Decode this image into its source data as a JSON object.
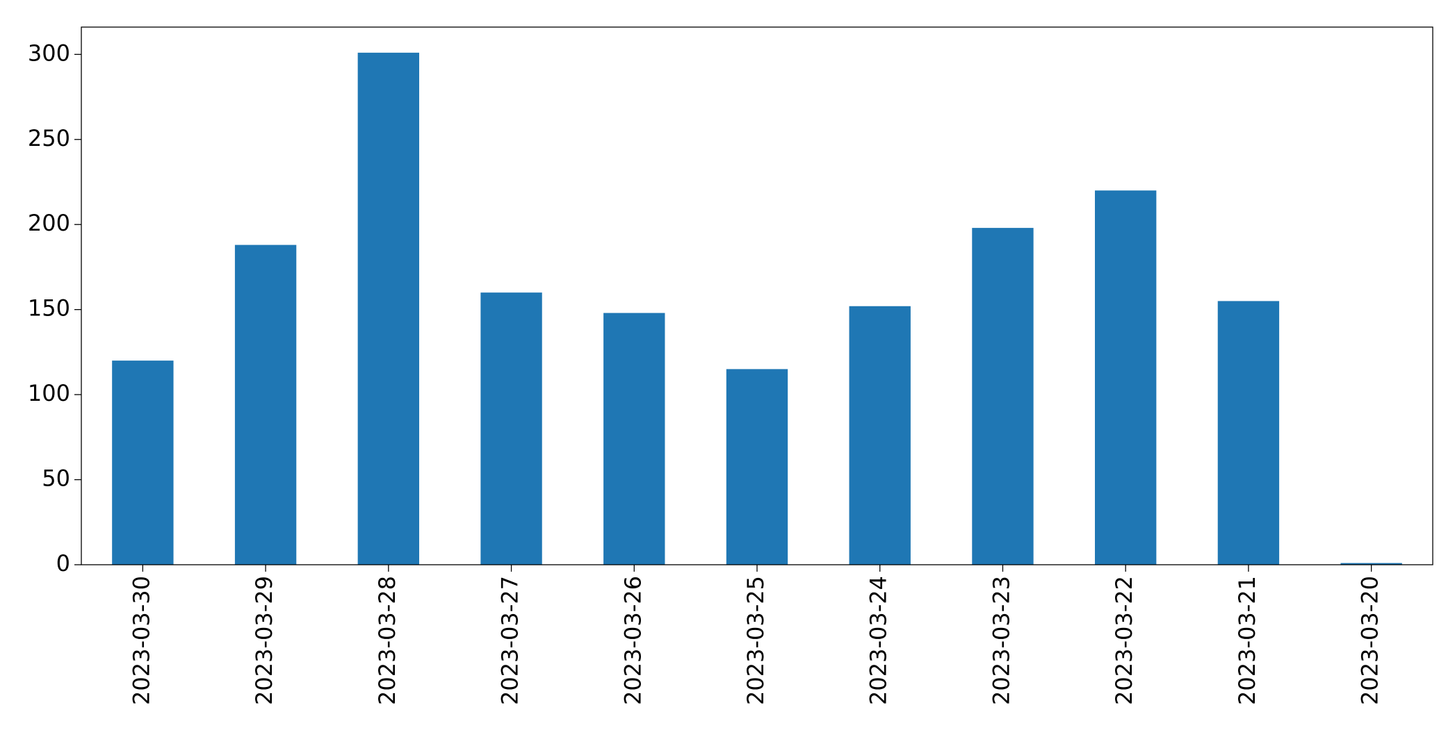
{
  "chart_data": {
    "type": "bar",
    "categories": [
      "2023-03-30",
      "2023-03-29",
      "2023-03-28",
      "2023-03-27",
      "2023-03-26",
      "2023-03-25",
      "2023-03-24",
      "2023-03-23",
      "2023-03-22",
      "2023-03-21",
      "2023-03-20"
    ],
    "values": [
      120,
      188,
      301,
      160,
      148,
      115,
      152,
      198,
      220,
      155,
      1
    ],
    "color": "#1f77b4",
    "ylim": [
      0,
      316.05
    ],
    "yticks": [
      0,
      50,
      100,
      150,
      200,
      250,
      300
    ],
    "grid": false
  }
}
